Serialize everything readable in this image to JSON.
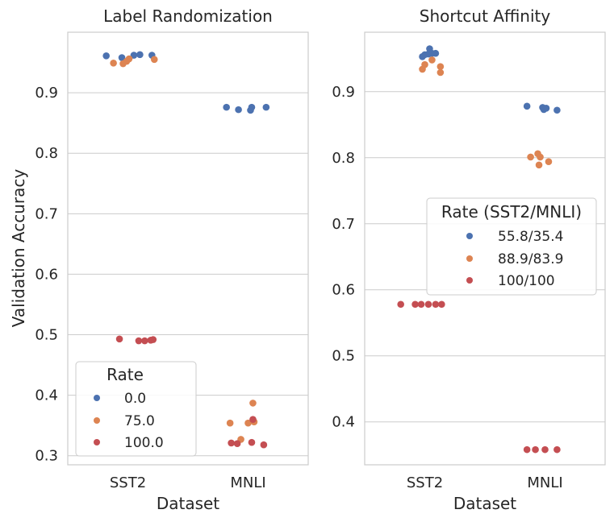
{
  "colors": {
    "blue": "#4c72b0",
    "orange": "#dd8452",
    "red": "#c44e52",
    "grid": "#cccccc"
  },
  "chart_data": [
    {
      "type": "scatter",
      "title": "Label Randomization",
      "xlabel": "Dataset",
      "ylabel": "Validation Accuracy",
      "categories": [
        "SST2",
        "MNLI"
      ],
      "ylim": [
        0.285,
        1.0
      ],
      "yticks": [
        0.3,
        0.4,
        0.5,
        0.6,
        0.7,
        0.8,
        0.9
      ],
      "ytick_labels": [
        "0.3",
        "0.4",
        "0.5",
        "0.6",
        "0.7",
        "0.8",
        "0.9"
      ],
      "legend": {
        "title": "Rate",
        "position": "lower-left"
      },
      "series": [
        {
          "name": "0.0",
          "color": "#4c72b0",
          "points": [
            {
              "cat": "SST2",
              "jitter": -0.18,
              "y": 0.961
            },
            {
              "cat": "SST2",
              "jitter": -0.05,
              "y": 0.958
            },
            {
              "cat": "SST2",
              "jitter": 0.05,
              "y": 0.962
            },
            {
              "cat": "SST2",
              "jitter": 0.1,
              "y": 0.963
            },
            {
              "cat": "SST2",
              "jitter": 0.2,
              "y": 0.962
            },
            {
              "cat": "MNLI",
              "jitter": -0.18,
              "y": 0.876
            },
            {
              "cat": "MNLI",
              "jitter": -0.08,
              "y": 0.872
            },
            {
              "cat": "MNLI",
              "jitter": 0.02,
              "y": 0.871
            },
            {
              "cat": "MNLI",
              "jitter": 0.03,
              "y": 0.876
            },
            {
              "cat": "MNLI",
              "jitter": 0.15,
              "y": 0.876
            }
          ]
        },
        {
          "name": "75.0",
          "color": "#dd8452",
          "points": [
            {
              "cat": "SST2",
              "jitter": -0.12,
              "y": 0.949
            },
            {
              "cat": "SST2",
              "jitter": -0.04,
              "y": 0.948
            },
            {
              "cat": "SST2",
              "jitter": -0.01,
              "y": 0.952
            },
            {
              "cat": "SST2",
              "jitter": 0.01,
              "y": 0.956
            },
            {
              "cat": "SST2",
              "jitter": 0.22,
              "y": 0.955
            },
            {
              "cat": "MNLI",
              "jitter": -0.15,
              "y": 0.354
            },
            {
              "cat": "MNLI",
              "jitter": -0.06,
              "y": 0.327
            },
            {
              "cat": "MNLI",
              "jitter": 0.0,
              "y": 0.354
            },
            {
              "cat": "MNLI",
              "jitter": 0.05,
              "y": 0.356
            },
            {
              "cat": "MNLI",
              "jitter": 0.04,
              "y": 0.387
            }
          ]
        },
        {
          "name": "100.0",
          "color": "#c44e52",
          "points": [
            {
              "cat": "SST2",
              "jitter": -0.07,
              "y": 0.493
            },
            {
              "cat": "SST2",
              "jitter": 0.09,
              "y": 0.49
            },
            {
              "cat": "SST2",
              "jitter": 0.14,
              "y": 0.49
            },
            {
              "cat": "SST2",
              "jitter": 0.19,
              "y": 0.491
            },
            {
              "cat": "SST2",
              "jitter": 0.21,
              "y": 0.492
            },
            {
              "cat": "MNLI",
              "jitter": -0.14,
              "y": 0.321
            },
            {
              "cat": "MNLI",
              "jitter": -0.09,
              "y": 0.32
            },
            {
              "cat": "MNLI",
              "jitter": 0.04,
              "y": 0.36
            },
            {
              "cat": "MNLI",
              "jitter": 0.03,
              "y": 0.322
            },
            {
              "cat": "MNLI",
              "jitter": 0.13,
              "y": 0.318
            }
          ]
        }
      ]
    },
    {
      "type": "scatter",
      "title": "Shortcut Affinity",
      "xlabel": "Dataset",
      "ylabel": "",
      "categories": [
        "SST2",
        "MNLI"
      ],
      "ylim": [
        0.335,
        0.99
      ],
      "yticks": [
        0.4,
        0.5,
        0.6,
        0.7,
        0.8,
        0.9
      ],
      "ytick_labels": [
        "0.4",
        "0.5",
        "0.6",
        "0.7",
        "0.8",
        "0.9"
      ],
      "legend": {
        "title": "Rate (SST2/MNLI)",
        "position": "center-right"
      },
      "series": [
        {
          "name": "55.8/35.4",
          "color": "#4c72b0",
          "points": [
            {
              "cat": "SST2",
              "jitter": -0.02,
              "y": 0.953
            },
            {
              "cat": "SST2",
              "jitter": 0.0,
              "y": 0.956
            },
            {
              "cat": "SST2",
              "jitter": 0.03,
              "y": 0.957
            },
            {
              "cat": "SST2",
              "jitter": 0.06,
              "y": 0.958
            },
            {
              "cat": "SST2",
              "jitter": 0.04,
              "y": 0.965
            },
            {
              "cat": "SST2",
              "jitter": 0.09,
              "y": 0.958
            },
            {
              "cat": "MNLI",
              "jitter": -0.15,
              "y": 0.878
            },
            {
              "cat": "MNLI",
              "jitter": -0.02,
              "y": 0.876
            },
            {
              "cat": "MNLI",
              "jitter": -0.01,
              "y": 0.873
            },
            {
              "cat": "MNLI",
              "jitter": 0.01,
              "y": 0.875
            },
            {
              "cat": "MNLI",
              "jitter": 0.1,
              "y": 0.872
            }
          ]
        },
        {
          "name": "88.9/83.9",
          "color": "#dd8452",
          "points": [
            {
              "cat": "SST2",
              "jitter": -0.02,
              "y": 0.934
            },
            {
              "cat": "SST2",
              "jitter": 0.0,
              "y": 0.941
            },
            {
              "cat": "SST2",
              "jitter": 0.06,
              "y": 0.948
            },
            {
              "cat": "SST2",
              "jitter": 0.13,
              "y": 0.938
            },
            {
              "cat": "SST2",
              "jitter": 0.13,
              "y": 0.929
            },
            {
              "cat": "MNLI",
              "jitter": -0.12,
              "y": 0.801
            },
            {
              "cat": "MNLI",
              "jitter": -0.06,
              "y": 0.806
            },
            {
              "cat": "MNLI",
              "jitter": -0.05,
              "y": 0.789
            },
            {
              "cat": "MNLI",
              "jitter": -0.04,
              "y": 0.801
            },
            {
              "cat": "MNLI",
              "jitter": 0.03,
              "y": 0.794
            }
          ]
        },
        {
          "name": "100/100",
          "color": "#c44e52",
          "points": [
            {
              "cat": "SST2",
              "jitter": -0.2,
              "y": 0.578
            },
            {
              "cat": "SST2",
              "jitter": -0.08,
              "y": 0.578
            },
            {
              "cat": "SST2",
              "jitter": -0.03,
              "y": 0.578
            },
            {
              "cat": "SST2",
              "jitter": 0.03,
              "y": 0.578
            },
            {
              "cat": "SST2",
              "jitter": 0.09,
              "y": 0.578
            },
            {
              "cat": "SST2",
              "jitter": 0.14,
              "y": 0.578
            },
            {
              "cat": "MNLI",
              "jitter": -0.15,
              "y": 0.358
            },
            {
              "cat": "MNLI",
              "jitter": -0.08,
              "y": 0.358
            },
            {
              "cat": "MNLI",
              "jitter": 0.0,
              "y": 0.358
            },
            {
              "cat": "MNLI",
              "jitter": 0.1,
              "y": 0.358
            }
          ]
        }
      ]
    }
  ]
}
